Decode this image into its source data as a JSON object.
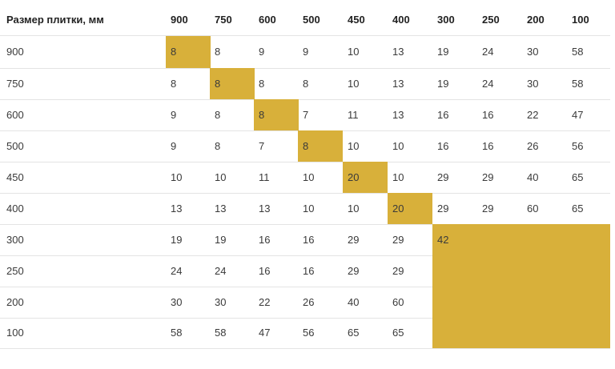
{
  "table": {
    "corner_label": "Размер плитки, мм",
    "columns": [
      "900",
      "750",
      "600",
      "500",
      "450",
      "400",
      "300",
      "250",
      "200",
      "100"
    ],
    "rows": [
      {
        "label": "900",
        "values": [
          "8",
          "8",
          "9",
          "9",
          "10",
          "13",
          "19",
          "24",
          "30",
          "58"
        ]
      },
      {
        "label": "750",
        "values": [
          "8",
          "8",
          "8",
          "8",
          "10",
          "13",
          "19",
          "24",
          "30",
          "58"
        ]
      },
      {
        "label": "600",
        "values": [
          "9",
          "8",
          "8",
          "7",
          "11",
          "13",
          "16",
          "16",
          "22",
          "47"
        ]
      },
      {
        "label": "500",
        "values": [
          "9",
          "8",
          "7",
          "8",
          "10",
          "10",
          "16",
          "16",
          "26",
          "56"
        ]
      },
      {
        "label": "450",
        "values": [
          "10",
          "10",
          "11",
          "10",
          "20",
          "10",
          "29",
          "29",
          "40",
          "65"
        ]
      },
      {
        "label": "400",
        "values": [
          "13",
          "13",
          "13",
          "10",
          "10",
          "20",
          "29",
          "29",
          "60",
          "65"
        ]
      },
      {
        "label": "300",
        "values": [
          "19",
          "19",
          "16",
          "16",
          "29",
          "29",
          "42",
          "",
          "",
          ""
        ]
      },
      {
        "label": "250",
        "values": [
          "24",
          "24",
          "16",
          "16",
          "29",
          "29",
          "",
          "",
          "",
          ""
        ]
      },
      {
        "label": "200",
        "values": [
          "30",
          "30",
          "22",
          "26",
          "40",
          "60",
          "",
          "",
          "",
          ""
        ]
      },
      {
        "label": "100",
        "values": [
          "58",
          "58",
          "47",
          "56",
          "65",
          "65",
          "",
          "",
          "",
          ""
        ]
      }
    ],
    "highlight_color": "#d8b03a"
  }
}
